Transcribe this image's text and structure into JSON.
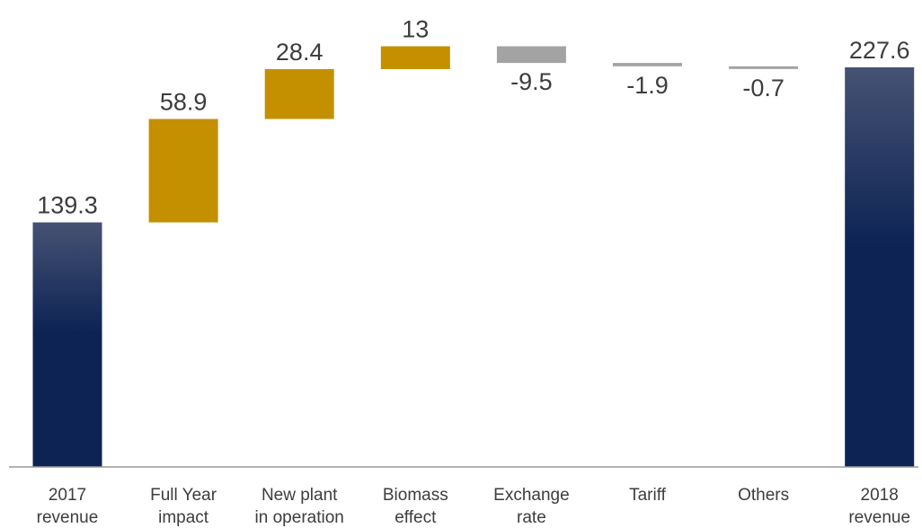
{
  "chart_data": {
    "type": "bar",
    "subtype": "waterfall",
    "title": "",
    "xlabel": "",
    "ylabel": "",
    "categories": [
      [
        "2017",
        "revenue"
      ],
      [
        "Full Year",
        "impact"
      ],
      [
        "New plant",
        "in operation"
      ],
      [
        "Biomass",
        "effect"
      ],
      [
        "Exchange",
        "rate"
      ],
      [
        "Tariff"
      ],
      [
        "Others"
      ],
      [
        "2018",
        "revenue"
      ]
    ],
    "values": [
      139.3,
      58.9,
      28.4,
      13,
      -9.5,
      -1.9,
      -0.7,
      227.6
    ],
    "value_labels": [
      "139.3",
      "58.9",
      "28.4",
      "13",
      "-9.5",
      "-1.9",
      "-0.7",
      "227.6"
    ],
    "kinds": [
      "total",
      "delta",
      "delta",
      "delta",
      "delta",
      "delta",
      "delta",
      "total"
    ],
    "ylim": [
      0,
      240
    ],
    "grid": false,
    "legend": "none",
    "colors": {
      "total_top": "#465273",
      "total_bottom": "#0c2354",
      "increase": "#c49000",
      "decrease": "#a3a3a3",
      "axis": "#9a9a9a",
      "text": "#3d3d3d"
    }
  }
}
